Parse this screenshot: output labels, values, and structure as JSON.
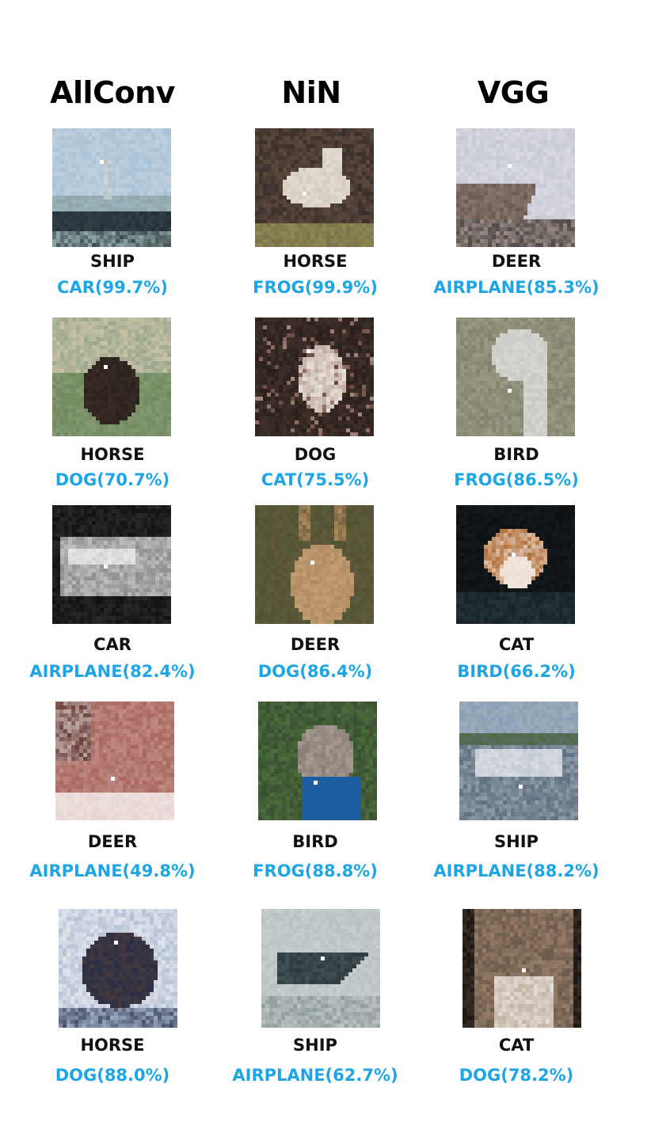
{
  "columns": [
    "AllConv",
    "NiN",
    "VGG"
  ],
  "colors": {
    "true_label": "#111111",
    "predicted_label": "#1ea5e6"
  },
  "grid": [
    [
      {
        "true": "SHIP",
        "pred": "CAR(99.7%)",
        "scene": "ship-harbor",
        "pal": [
          "#a9c3d6",
          "#8fa6a8",
          "#3e4a4b",
          "#23303a",
          "#cfd9e4"
        ]
      },
      {
        "true": "HORSE",
        "pred": "FROG(99.9%)",
        "scene": "white-horse",
        "pal": [
          "#5d4a3e",
          "#e3ddd3",
          "#8d8a54",
          "#c2b8a6",
          "#3a2f2a"
        ]
      },
      {
        "true": "DEER",
        "pred": "AIRPLANE(85.3%)",
        "scene": "deer-sky",
        "pal": [
          "#c7c9d3",
          "#6b5b52",
          "#9b8c83",
          "#e7e5ea",
          "#4f4a4b"
        ]
      }
    ],
    [
      {
        "true": "HORSE",
        "pred": "DOG(70.7%)",
        "scene": "rider-horse",
        "pal": [
          "#6f8a5c",
          "#3a2c24",
          "#c9c2a4",
          "#9ba88e",
          "#1c1a17"
        ]
      },
      {
        "true": "DOG",
        "pred": "CAT(75.5%)",
        "scene": "dark-dog",
        "pal": [
          "#2a1f1c",
          "#e7dfd8",
          "#6a4a42",
          "#a98a81",
          "#4a3a30"
        ]
      },
      {
        "true": "BIRD",
        "pred": "FROG(86.5%)",
        "scene": "ostrich",
        "pal": [
          "#9c9a85",
          "#c9c9c4",
          "#767764",
          "#5d5b52",
          "#e0e0dd"
        ]
      }
    ],
    [
      {
        "true": "CAR",
        "pred": "AIRPLANE(82.4%)",
        "scene": "bw-car",
        "pal": [
          "#111111",
          "#e8e8e8",
          "#7a7a7a",
          "#bdbdbd",
          "#383838"
        ]
      },
      {
        "true": "DEER",
        "pred": "DOG(86.4%)",
        "scene": "brown-deer",
        "pal": [
          "#5e5c3a",
          "#b08a60",
          "#4a4a30",
          "#d6b48a",
          "#74623f"
        ]
      },
      {
        "true": "CAT",
        "pred": "BIRD(66.2%)",
        "scene": "dark-cat",
        "pal": [
          "#0d0f10",
          "#e8d4c6",
          "#b2703a",
          "#24343a",
          "#f1e7e1"
        ]
      }
    ],
    [
      {
        "true": "DEER",
        "pred": "AIRPLANE(49.8%)",
        "scene": "pink-deer",
        "pal": [
          "#a8675f",
          "#e7d5d2",
          "#c99a92",
          "#6a3f3a",
          "#f2e9e7"
        ]
      },
      {
        "true": "BIRD",
        "pred": "FROG(88.8%)",
        "scene": "peacock",
        "pal": [
          "#4c6d3c",
          "#1d5ea0",
          "#8a7e76",
          "#2c3a2a",
          "#b9b0a6"
        ]
      },
      {
        "true": "SHIP",
        "pred": "AIRPLANE(88.2%)",
        "scene": "white-boat",
        "pal": [
          "#8a9fb4",
          "#d9dde2",
          "#4f6a3e",
          "#5f7080",
          "#b0bac4"
        ]
      }
    ],
    [
      {
        "true": "HORSE",
        "pred": "DOG(88.0%)",
        "scene": "snow-horse",
        "pal": [
          "#dfe4ec",
          "#2a2e45",
          "#6b4a34",
          "#9aa9c4",
          "#141826"
        ]
      },
      {
        "true": "SHIP",
        "pred": "AIRPLANE(62.7%)",
        "scene": "gray-ship",
        "pal": [
          "#b8c0c2",
          "#2c3a3f",
          "#8f9b9c",
          "#d6dcdc",
          "#5a6668"
        ]
      },
      {
        "true": "CAT",
        "pred": "DOG(78.2%)",
        "scene": "tabby-cat",
        "pal": [
          "#6e5a4a",
          "#e3ddd6",
          "#3c3028",
          "#a58c76",
          "#1a1512"
        ]
      }
    ]
  ]
}
